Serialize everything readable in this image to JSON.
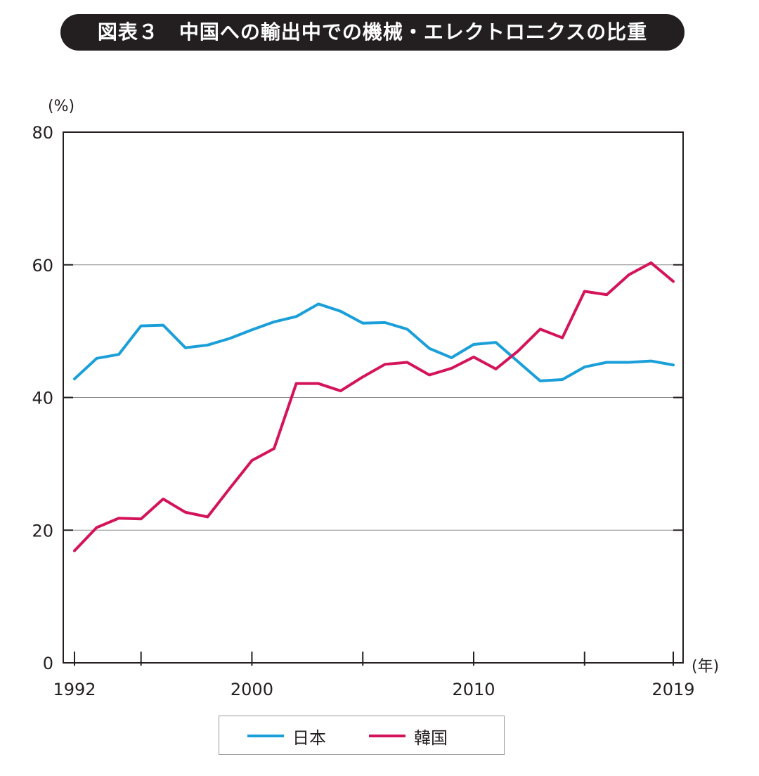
{
  "title": "図表３　中国への輸出中での機械・エレクトロニクスの比重",
  "chart_data": {
    "type": "line",
    "ylabel": "(%)",
    "xlabel": "(年)",
    "ylim": [
      0,
      80
    ],
    "yticks": [
      0,
      20,
      40,
      60,
      80
    ],
    "xticks": [
      1992,
      2000,
      2010,
      2019
    ],
    "gridlines_y": [
      20,
      40,
      60
    ],
    "x": [
      1992,
      1993,
      1994,
      1995,
      1996,
      1997,
      1998,
      1999,
      2000,
      2001,
      2002,
      2003,
      2004,
      2005,
      2006,
      2007,
      2008,
      2009,
      2010,
      2011,
      2012,
      2013,
      2014,
      2015,
      2016,
      2017,
      2018,
      2019
    ],
    "series": [
      {
        "name": "日本",
        "color": "#1a9fd9",
        "values": [
          42.8,
          45.9,
          46.5,
          50.8,
          50.9,
          47.5,
          47.9,
          48.9,
          50.2,
          51.4,
          52.2,
          54.1,
          53.0,
          51.2,
          51.3,
          50.3,
          47.4,
          46.0,
          48.0,
          48.3,
          45.4,
          42.5,
          42.7,
          44.6,
          45.3,
          45.3,
          45.5,
          44.9
        ]
      },
      {
        "name": "韓国",
        "color": "#d4145a",
        "values": [
          16.9,
          20.4,
          21.8,
          21.7,
          24.7,
          22.7,
          22.0,
          26.3,
          30.5,
          32.3,
          42.1,
          42.1,
          41.0,
          43.1,
          45.0,
          45.3,
          43.4,
          44.4,
          46.1,
          44.3,
          47.0,
          50.3,
          49.0,
          56.0,
          55.5,
          58.5,
          60.3,
          57.5
        ]
      }
    ],
    "legend_position": "bottom-center"
  }
}
